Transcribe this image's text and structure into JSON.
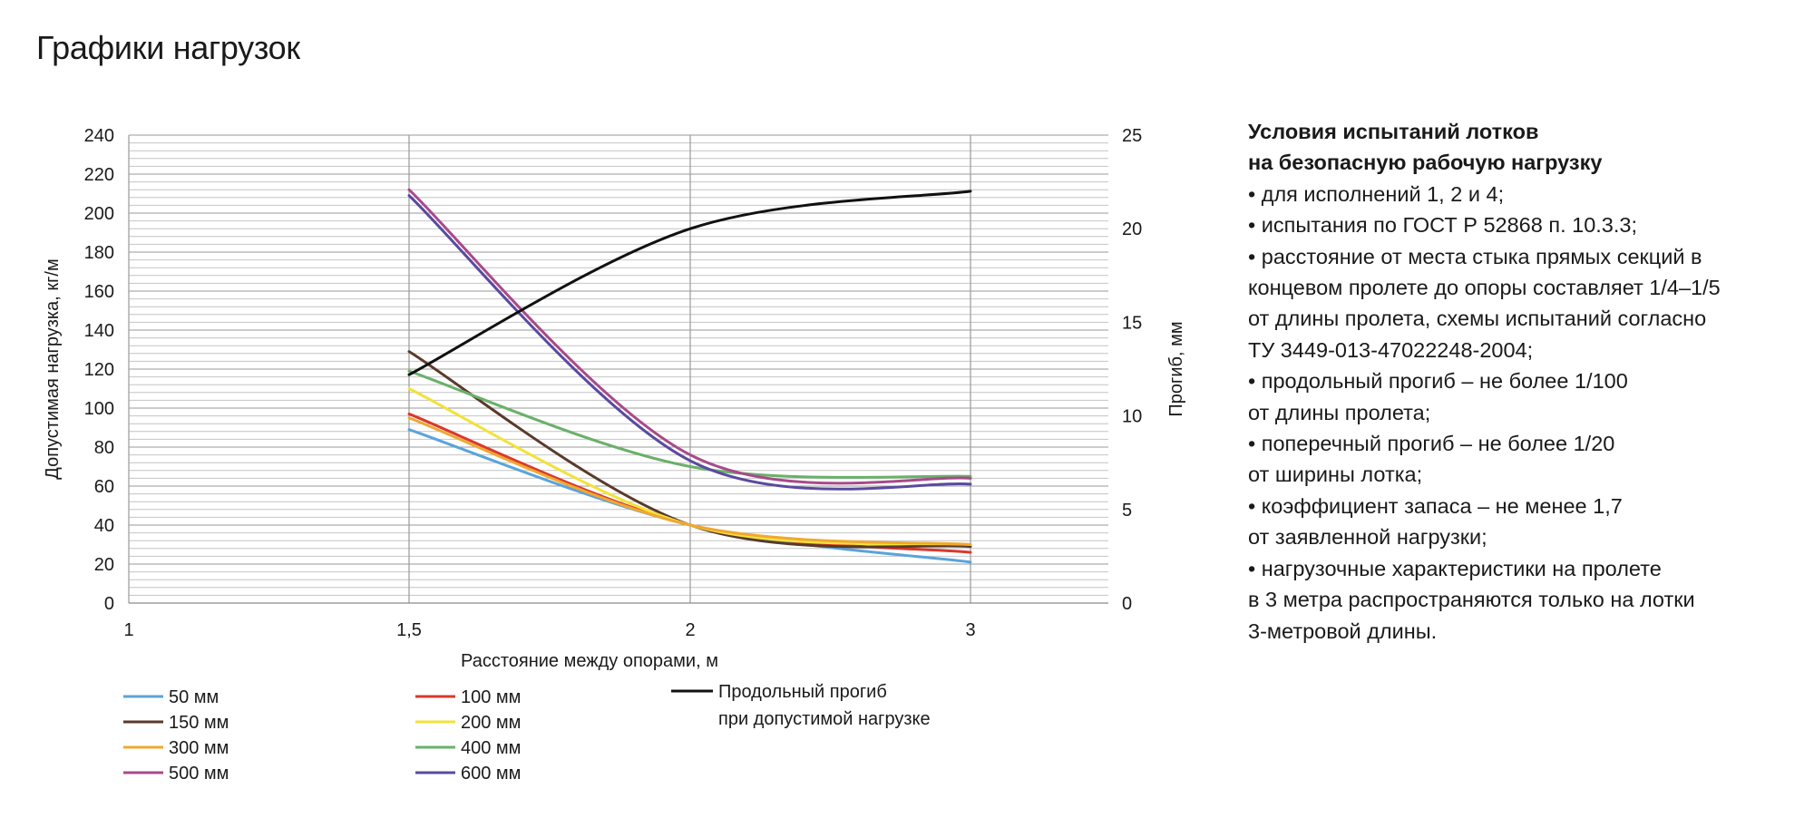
{
  "page_title": "Графики нагрузок",
  "notes": {
    "title_lines": [
      "Условия испытаний лотков",
      "на безопасную рабочую нагрузку"
    ],
    "lines": [
      "• для исполнений 1, 2 и 4;",
      "• испытания по ГОСТ Р 52868 п. 10.3.3;",
      "• расстояние от места стыка прямых секций в",
      "концевом пролете до опоры составляет 1/4–1/5",
      "от длины пролета, схемы испытаний согласно",
      "ТУ 3449-013-47022248-2004;",
      "• продольный прогиб – не более 1/100",
      "от длины пролета;",
      "• поперечный прогиб – не более 1/20",
      "от ширины лотка;",
      "• коэффициент запаса – не менее 1,7",
      "от заявленной нагрузки;",
      "• нагрузочные характеристики на пролете",
      "в 3 метра распространяются только на лотки",
      "3-метровой длины."
    ]
  },
  "chart_data": {
    "type": "line",
    "title": "",
    "xlabel": "Расстояние между опорами, м",
    "ylabel": "Допустимая нагрузка, кг/м",
    "y2label": "Прогиб, мм",
    "x_categories": [
      "1",
      "1,5",
      "2",
      "3"
    ],
    "x_positions": [
      1,
      1.5,
      2,
      3
    ],
    "ylim": [
      0,
      240
    ],
    "y_ticks": [
      0,
      20,
      40,
      60,
      80,
      100,
      120,
      140,
      160,
      180,
      200,
      220,
      240
    ],
    "y2lim": [
      0,
      25
    ],
    "y2_ticks": [
      0,
      5,
      10,
      15,
      20,
      25
    ],
    "grid": true,
    "legend_position": "bottom",
    "series": [
      {
        "name": "50 мм",
        "color": "#5aa3dc",
        "axis": "left",
        "x": [
          1.5,
          2,
          3
        ],
        "values": [
          89,
          40,
          21
        ]
      },
      {
        "name": "100 мм",
        "color": "#d9392b",
        "axis": "left",
        "x": [
          1.5,
          2,
          3
        ],
        "values": [
          97,
          40,
          26
        ]
      },
      {
        "name": "150 мм",
        "color": "#5a3a2a",
        "axis": "left",
        "x": [
          1.5,
          2,
          3
        ],
        "values": [
          129,
          40,
          29
        ]
      },
      {
        "name": "200 мм",
        "color": "#f2e23a",
        "axis": "left",
        "x": [
          1.5,
          2,
          3
        ],
        "values": [
          110,
          40,
          30
        ]
      },
      {
        "name": "300 мм",
        "color": "#f0a830",
        "axis": "left",
        "x": [
          1.5,
          2,
          3
        ],
        "values": [
          95,
          40,
          30
        ]
      },
      {
        "name": "400 мм",
        "color": "#6ab06a",
        "axis": "left",
        "x": [
          1.5,
          2,
          3
        ],
        "values": [
          119,
          70,
          65
        ]
      },
      {
        "name": "500 мм",
        "color": "#a84a8a",
        "axis": "left",
        "x": [
          1.5,
          2,
          3
        ],
        "values": [
          212,
          76,
          64
        ]
      },
      {
        "name": "600 мм",
        "color": "#5a4aa0",
        "axis": "left",
        "x": [
          1.5,
          2,
          3
        ],
        "values": [
          209,
          73,
          61
        ]
      }
    ],
    "deflection_series": {
      "name_lines": [
        "Продольный прогиб",
        "при допустимой нагрузке"
      ],
      "color": "#111111",
      "axis": "right",
      "x": [
        1.5,
        2,
        3
      ],
      "values": [
        12.2,
        20.0,
        22.0
      ]
    }
  }
}
